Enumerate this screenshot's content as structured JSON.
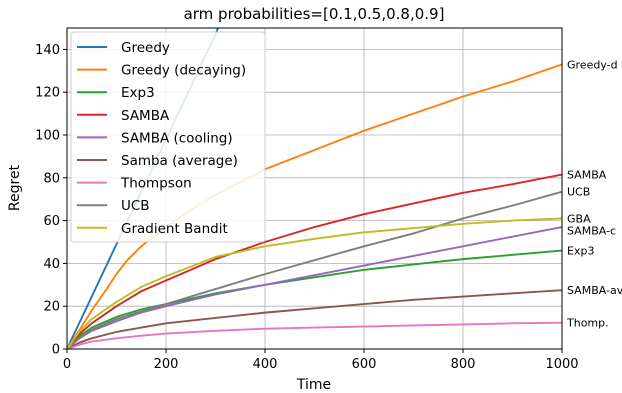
{
  "chart_data": {
    "type": "line",
    "title": "arm probabilities=[0.1,0.5,0.8,0.9]",
    "xlabel": "Time",
    "ylabel": "Regret",
    "xlim": [
      0,
      1000
    ],
    "ylim": [
      0,
      150
    ],
    "xticks": [
      0,
      200,
      400,
      600,
      800,
      1000
    ],
    "yticks": [
      0,
      20,
      40,
      60,
      80,
      100,
      120,
      140
    ],
    "xtick_labels": [
      "0",
      "200",
      "400",
      "600",
      "800",
      "1000"
    ],
    "ytick_labels": [
      "0",
      "20",
      "40",
      "60",
      "80",
      "100",
      "120",
      "140"
    ],
    "grid": true,
    "legend_position": "top-left",
    "series": [
      {
        "name": "Greedy",
        "color": "#1f77b4",
        "end_label": "",
        "x": [
          0,
          100,
          200,
          300,
          305
        ],
        "y": [
          0,
          49,
          98,
          147,
          150
        ]
      },
      {
        "name": "Greedy (decaying)",
        "color": "#ff7f0e",
        "end_label": "Greedy-d",
        "x": [
          0,
          20,
          50,
          80,
          100,
          120,
          150,
          200,
          250,
          300,
          400,
          500,
          600,
          700,
          800,
          900,
          1000
        ],
        "y": [
          0,
          7,
          18,
          28,
          35,
          41,
          48,
          57,
          65,
          72,
          84,
          93,
          102,
          110,
          118,
          125,
          133
        ]
      },
      {
        "name": "Exp3",
        "color": "#2ca02c",
        "end_label": "Exp3",
        "x": [
          0,
          25,
          50,
          100,
          150,
          200,
          300,
          400,
          500,
          600,
          700,
          800,
          900,
          1000
        ],
        "y": [
          0,
          6,
          10,
          15,
          18.5,
          21,
          26,
          30,
          33.5,
          37,
          39.5,
          42,
          44,
          46
        ]
      },
      {
        "name": "SAMBA",
        "color": "#d62728",
        "end_label": "SAMBA",
        "x": [
          0,
          25,
          50,
          100,
          150,
          200,
          300,
          400,
          500,
          600,
          700,
          800,
          900,
          1000
        ],
        "y": [
          0,
          7,
          12,
          20,
          27,
          32,
          42,
          50,
          57,
          63,
          68,
          73,
          77,
          81.5
        ]
      },
      {
        "name": "SAMBA (cooling)",
        "color": "#9467bd",
        "end_label": "SAMBA-c",
        "x": [
          0,
          25,
          50,
          100,
          150,
          200,
          300,
          400,
          500,
          600,
          700,
          800,
          900,
          1000
        ],
        "y": [
          0,
          5,
          8.5,
          13,
          17,
          20,
          25.5,
          30,
          34.5,
          39,
          43.5,
          48,
          52.5,
          57
        ]
      },
      {
        "name": "Samba (average)",
        "color": "#8c564b",
        "end_label": "SAMBA-av",
        "x": [
          0,
          25,
          50,
          100,
          150,
          200,
          300,
          400,
          500,
          600,
          700,
          800,
          900,
          1000
        ],
        "y": [
          0,
          3,
          5,
          8,
          10,
          12,
          14.5,
          17,
          19,
          21,
          23,
          24.5,
          26,
          27.5
        ]
      },
      {
        "name": "Thompson",
        "color": "#e377c2",
        "end_label": "Thomp.",
        "x": [
          0,
          25,
          50,
          100,
          150,
          200,
          300,
          400,
          500,
          600,
          700,
          800,
          900,
          1000
        ],
        "y": [
          0,
          2,
          3.5,
          5,
          6.2,
          7.2,
          8.5,
          9.5,
          10,
          10.5,
          11,
          11.5,
          12,
          12.3
        ]
      },
      {
        "name": "UCB",
        "color": "#7f7f7f",
        "end_label": "UCB",
        "x": [
          0,
          25,
          50,
          100,
          200,
          300,
          400,
          500,
          600,
          700,
          800,
          900,
          1000
        ],
        "y": [
          0,
          5,
          9,
          14,
          21,
          28,
          35,
          41.5,
          48,
          54,
          61,
          67,
          73.5
        ]
      },
      {
        "name": "Gradient Bandit",
        "color": "#bcbd22",
        "end_label": "GBA",
        "x": [
          0,
          25,
          50,
          100,
          150,
          200,
          300,
          400,
          500,
          600,
          700,
          800,
          900,
          1000
        ],
        "y": [
          0,
          8,
          14,
          22,
          29,
          34,
          43,
          48,
          51.5,
          54.5,
          56.5,
          58.5,
          60,
          61
        ]
      }
    ]
  }
}
